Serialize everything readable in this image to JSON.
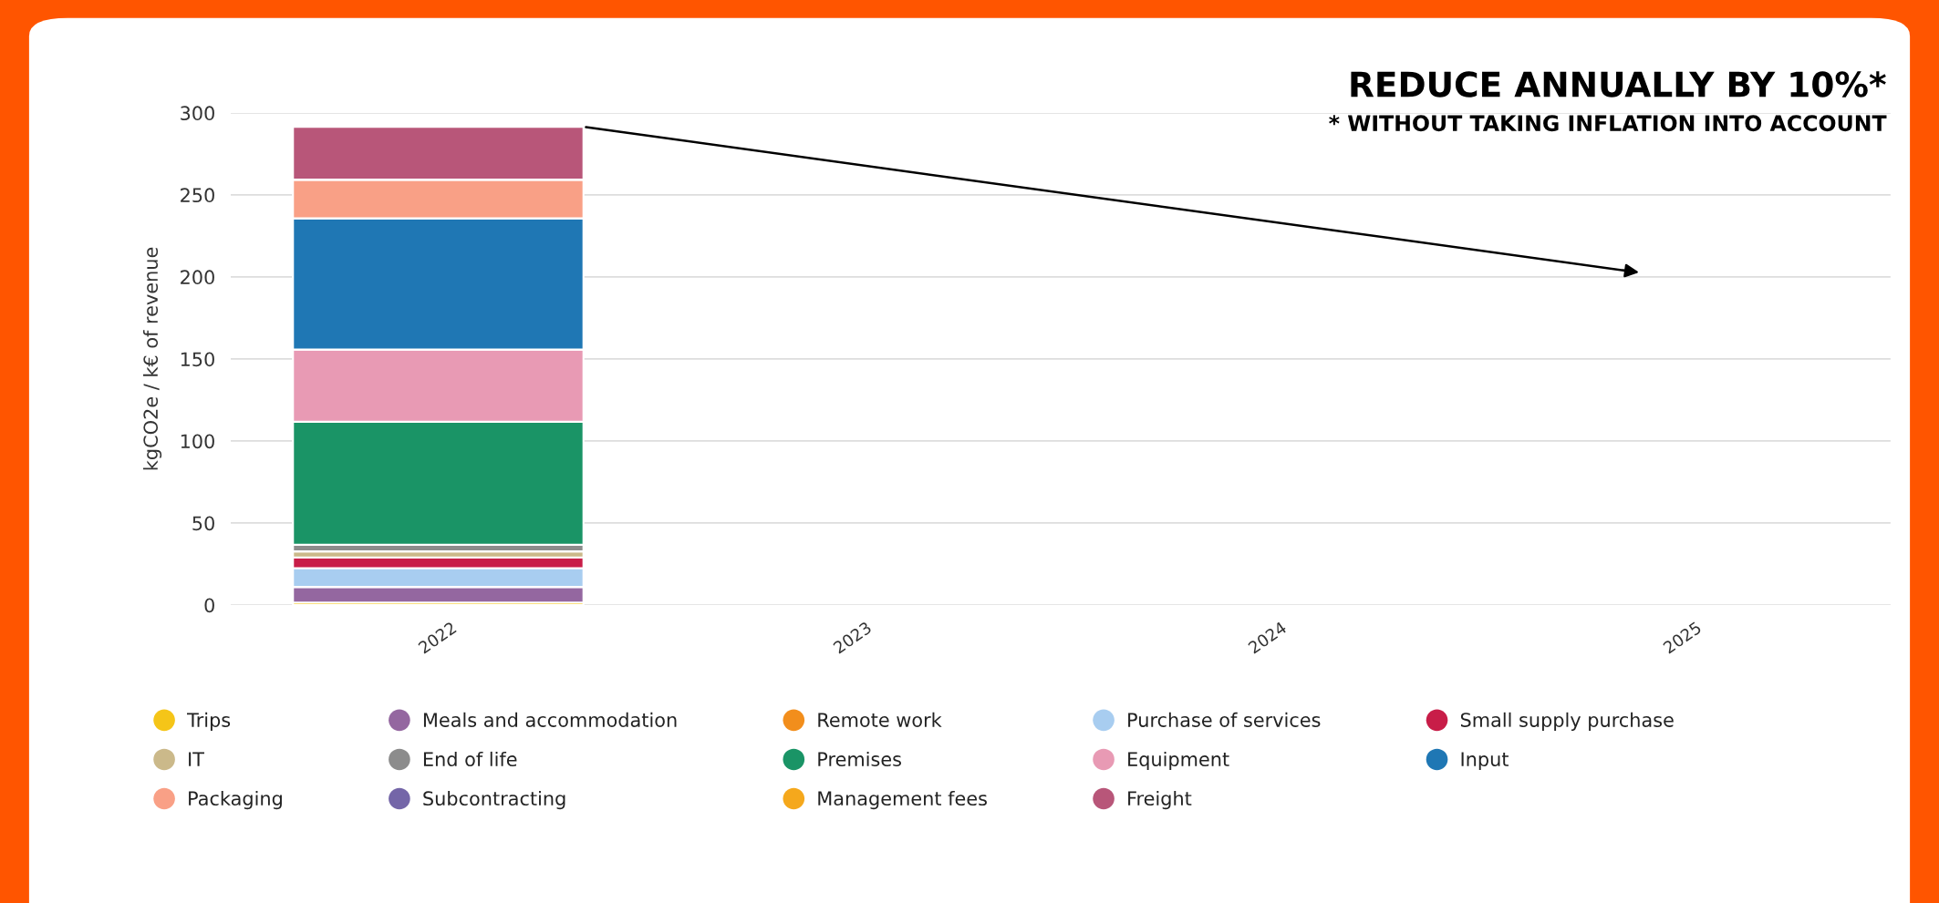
{
  "chart_data": {
    "type": "bar",
    "stacked": true,
    "categories": [
      "2022",
      "2023",
      "2024",
      "2025"
    ],
    "ylabel": "kgCO2e / k€ of revenue",
    "ylim": [
      0,
      300
    ],
    "yticks": [
      0,
      50,
      100,
      150,
      200,
      250,
      300
    ],
    "grid": "y",
    "legend": "bottom",
    "annotations": [
      "REDUCE ANNUALLY BY 10%*",
      "* WITHOUT TAKING INFLATION INTO ACCOUNT"
    ],
    "series": [
      {
        "name": "Trips",
        "color": "#f5c518",
        "values": [
          1.5,
          null,
          null,
          null
        ]
      },
      {
        "name": "Meals and accommodation",
        "color": "#9467a0",
        "values": [
          9.5,
          null,
          null,
          null
        ]
      },
      {
        "name": "Remote work",
        "color": "#f28e1c",
        "values": [
          0,
          null,
          null,
          null
        ]
      },
      {
        "name": "Purchase of services",
        "color": "#a8cdf0",
        "values": [
          11.5,
          null,
          null,
          null
        ]
      },
      {
        "name": "Small supply purchase",
        "color": "#c81d48",
        "values": [
          6.5,
          null,
          null,
          null
        ]
      },
      {
        "name": "IT",
        "color": "#cbb98a",
        "values": [
          3.7,
          null,
          null,
          null
        ]
      },
      {
        "name": "End of life",
        "color": "#8c8c8c",
        "values": [
          4,
          null,
          null,
          null
        ]
      },
      {
        "name": "Premises",
        "color": "#1a9466",
        "values": [
          75,
          null,
          null,
          null
        ]
      },
      {
        "name": "Equipment",
        "color": "#e89ab4",
        "values": [
          44,
          null,
          null,
          null
        ]
      },
      {
        "name": "Input",
        "color": "#1f77b4",
        "values": [
          80,
          null,
          null,
          null
        ]
      },
      {
        "name": "Packaging",
        "color": "#f9a086",
        "values": [
          23.6,
          null,
          null,
          null
        ]
      },
      {
        "name": "Subcontracting",
        "color": "#7466a8",
        "values": [
          0,
          null,
          null,
          null
        ]
      },
      {
        "name": "Management fees",
        "color": "#f5a81c",
        "values": [
          0,
          null,
          null,
          null
        ]
      },
      {
        "name": "Freight",
        "color": "#b85679",
        "values": [
          32.2,
          null,
          null,
          null
        ]
      }
    ]
  }
}
